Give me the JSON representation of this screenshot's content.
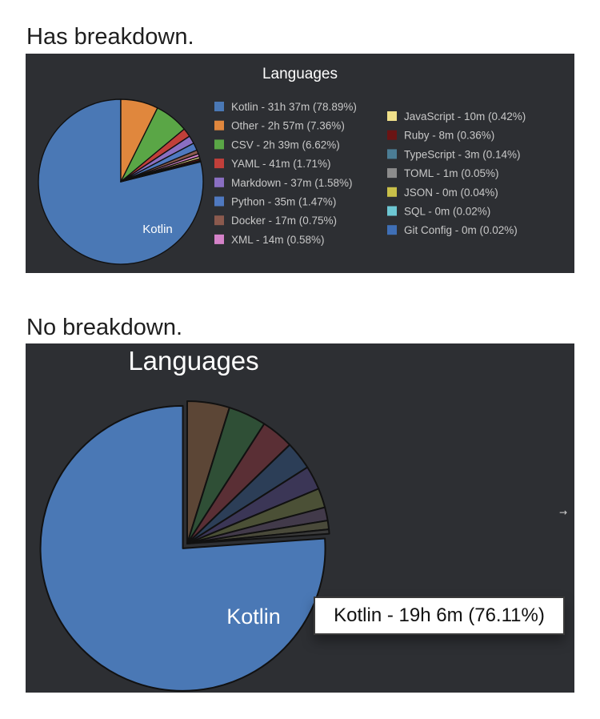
{
  "captions": {
    "first": "Has breakdown.",
    "second": "No breakdown."
  },
  "chart_data": [
    {
      "type": "pie",
      "title": "Languages",
      "slice_label": "Kotlin",
      "legend_placement": "right",
      "slices": [
        {
          "label": "Kotlin - 31h 37m (78.89%)",
          "value": 78.89,
          "color": "#4a78b5"
        },
        {
          "label": "Other - 2h 57m (7.36%)",
          "value": 7.36,
          "color": "#e0873d"
        },
        {
          "label": "CSV - 2h 39m (6.62%)",
          "value": 6.62,
          "color": "#5aa646"
        },
        {
          "label": "YAML - 41m (1.71%)",
          "value": 1.71,
          "color": "#c13f3a"
        },
        {
          "label": "Markdown - 37m (1.58%)",
          "value": 1.58,
          "color": "#8a6fc2"
        },
        {
          "label": "Python - 35m (1.47%)",
          "value": 1.47,
          "color": "#4f79c0"
        },
        {
          "label": "Docker - 17m (0.75%)",
          "value": 0.75,
          "color": "#8b5a4e"
        },
        {
          "label": "XML - 14m (0.58%)",
          "value": 0.58,
          "color": "#d482c8"
        },
        {
          "label": "JavaScript - 10m (0.42%)",
          "value": 0.42,
          "color": "#f0e08a"
        },
        {
          "label": "Ruby - 8m (0.36%)",
          "value": 0.36,
          "color": "#6a1414"
        },
        {
          "label": "TypeScript - 3m (0.14%)",
          "value": 0.14,
          "color": "#4b7d95"
        },
        {
          "label": "TOML - 1m (0.05%)",
          "value": 0.05,
          "color": "#8c8c8c"
        },
        {
          "label": "JSON - 0m (0.04%)",
          "value": 0.04,
          "color": "#c9c049"
        },
        {
          "label": "SQL - 0m (0.02%)",
          "value": 0.02,
          "color": "#6dc7d3"
        },
        {
          "label": "Git Config - 0m (0.02%)",
          "value": 0.02,
          "color": "#3f6fb6"
        }
      ]
    },
    {
      "type": "pie",
      "title": "Languages",
      "slice_label": "Kotlin",
      "tooltip": "Kotlin - 19h 6m (76.11%)",
      "slices": [
        {
          "value": 76.11,
          "color": "#4a78b5"
        },
        {
          "value": 4.8,
          "color": "#5c4636"
        },
        {
          "value": 4.3,
          "color": "#2f4f36"
        },
        {
          "value": 3.7,
          "color": "#5a2f35"
        },
        {
          "value": 3.2,
          "color": "#2c3e57"
        },
        {
          "value": 2.7,
          "color": "#3b3656"
        },
        {
          "value": 2.2,
          "color": "#4b5036"
        },
        {
          "value": 1.5,
          "color": "#423a4a"
        },
        {
          "value": 1.0,
          "color": "#4a4a3a"
        },
        {
          "value": 0.49,
          "color": "#3a3a3a"
        }
      ]
    }
  ],
  "misc": {
    "arrow_glyph": "→"
  }
}
